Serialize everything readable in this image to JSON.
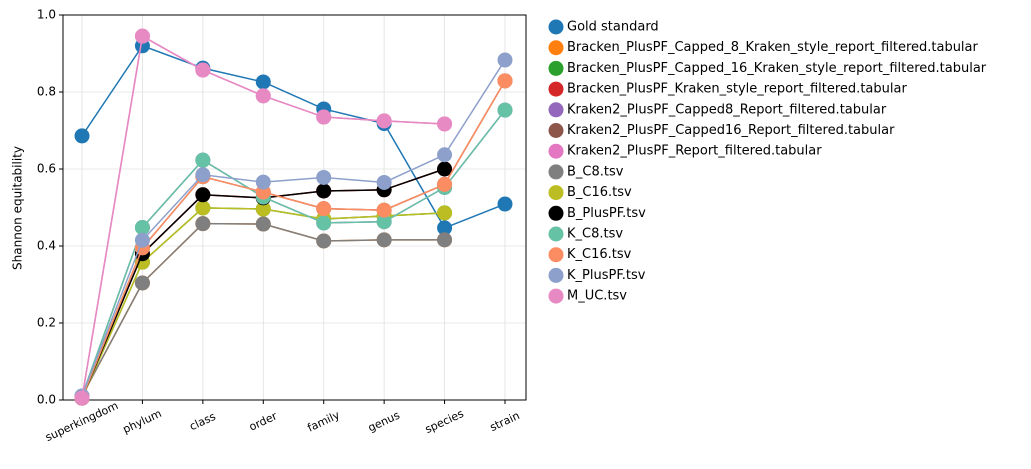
{
  "chart_data": {
    "type": "line",
    "y_label": "Shannon equitability",
    "categories": [
      "superkingdom",
      "phylum",
      "class",
      "order",
      "family",
      "genus",
      "species",
      "strain"
    ],
    "ylim": [
      0,
      1
    ],
    "yticks": [
      {
        "value": 0,
        "label": "0.0"
      },
      {
        "value": 0.2,
        "label": "0.2"
      },
      {
        "value": 0.4,
        "label": "0.4"
      },
      {
        "value": 0.6,
        "label": "0.6"
      },
      {
        "value": 0.8,
        "label": "0.8"
      },
      {
        "value": 1,
        "label": "1.0"
      }
    ],
    "grid": true,
    "legend": "outside right",
    "series": [
      {
        "name": "Gold standard",
        "color": "#1f77b4",
        "values": [
          0.686,
          0.92,
          0.862,
          0.826,
          0.756,
          0.718,
          0.447,
          0.509
        ]
      },
      {
        "name": "Bracken_PlusPF_Capped_8_Kraken_style_report_filtered.tabular",
        "color": "#ff7f0e",
        "values": [
          0.01,
          0.304,
          0.458,
          0.457,
          0.413,
          0.416,
          0.416,
          null
        ]
      },
      {
        "name": "Bracken_PlusPF_Capped_16_Kraken_style_report_filtered.tabular",
        "color": "#2ca02c",
        "values": [
          0.005,
          0.358,
          0.499,
          0.496,
          0.47,
          0.478,
          0.486,
          null
        ]
      },
      {
        "name": "Bracken_PlusPF_Kraken_style_report_filtered.tabular",
        "color": "#d62728",
        "values": [
          0.005,
          0.38,
          0.533,
          0.525,
          0.543,
          0.546,
          0.6,
          null
        ]
      },
      {
        "name": "Kraken2_PlusPF_Capped8_Report_filtered.tabular",
        "color": "#9467bd",
        "values": [
          0.01,
          0.448,
          0.623,
          0.527,
          0.46,
          0.463,
          0.552,
          0.753
        ]
      },
      {
        "name": "Kraken2_PlusPF_Capped16_Report_filtered.tabular",
        "color": "#8c564b",
        "values": [
          0.005,
          0.395,
          0.58,
          0.54,
          0.497,
          0.493,
          0.56,
          0.829
        ]
      },
      {
        "name": "Kraken2_PlusPF_Report_filtered.tabular",
        "color": "#e377c2",
        "values": [
          0.005,
          0.945,
          0.857,
          0.79,
          0.735,
          0.725,
          0.717,
          null
        ]
      },
      {
        "name": "B_C8.tsv",
        "color": "#7f7f7f",
        "values": [
          0.01,
          0.304,
          0.458,
          0.457,
          0.413,
          0.416,
          0.416,
          null
        ]
      },
      {
        "name": "B_C16.tsv",
        "color": "#bcbd22",
        "values": [
          0.005,
          0.358,
          0.499,
          0.496,
          0.47,
          0.478,
          0.486,
          null
        ]
      },
      {
        "name": "B_PlusPF.tsv",
        "color": "#000000",
        "values": [
          0.005,
          0.38,
          0.533,
          0.525,
          0.543,
          0.546,
          0.6,
          null
        ]
      },
      {
        "name": "K_C8.tsv",
        "color": "#66c2a5",
        "values": [
          0.01,
          0.448,
          0.623,
          0.527,
          0.46,
          0.463,
          0.552,
          0.753
        ]
      },
      {
        "name": "K_C16.tsv",
        "color": "#fc8d62",
        "values": [
          0.005,
          0.395,
          0.58,
          0.54,
          0.497,
          0.493,
          0.56,
          0.829
        ]
      },
      {
        "name": "K_PlusPF.tsv",
        "color": "#8da0cb",
        "values": [
          0.01,
          0.415,
          0.585,
          0.566,
          0.578,
          0.565,
          0.637,
          0.883
        ]
      },
      {
        "name": "M_UC.tsv",
        "color": "#e78ac3",
        "values": [
          0.005,
          0.945,
          0.857,
          0.79,
          0.735,
          0.725,
          0.717,
          null
        ]
      }
    ]
  }
}
